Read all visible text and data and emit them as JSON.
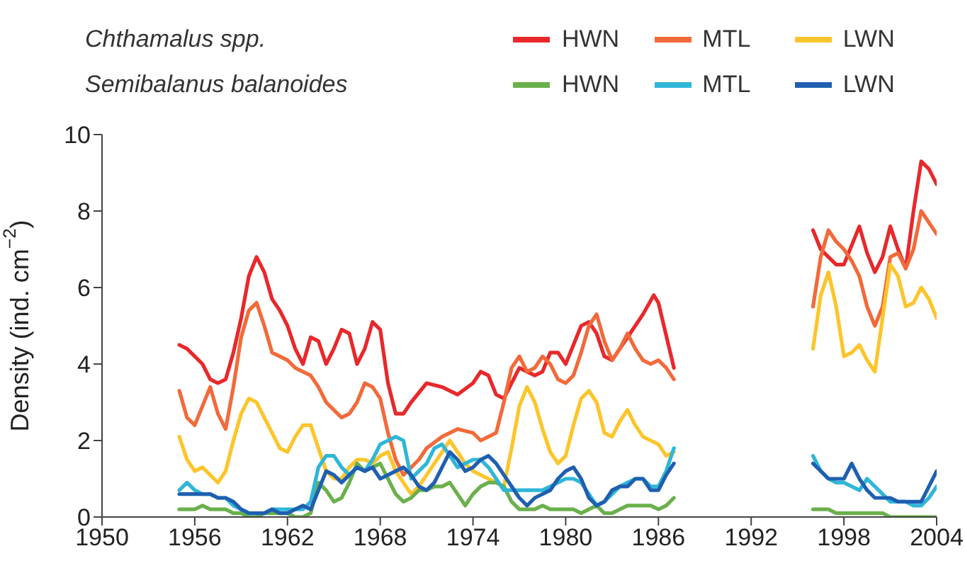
{
  "chart_data": {
    "type": "line",
    "ylabel": "Density (ind. cm$^{−2}$)",
    "xlim": [
      1950,
      2004
    ],
    "xticks": [
      1950,
      1956,
      1962,
      1968,
      1974,
      1980,
      1986,
      1992,
      1998,
      2004
    ],
    "ylim": [
      0,
      10
    ],
    "yticks": [
      0,
      2,
      4,
      6,
      8,
      10
    ],
    "grid": false,
    "legend": "top right",
    "annotations": [
      "Chthamalus spp.",
      "Semibalanus balanoides"
    ],
    "x": [
      1955,
      1955.5,
      1956,
      1956.5,
      1957,
      1957.5,
      1958,
      1958.5,
      1959,
      1959.5,
      1960,
      1960.5,
      1961,
      1961.5,
      1962,
      1962.5,
      1963,
      1963.5,
      1964,
      1964.5,
      1965,
      1965.5,
      1966,
      1966.5,
      1967,
      1967.5,
      1968,
      1968.5,
      1969,
      1969.5,
      1970,
      1970.5,
      1971,
      1971.5,
      1972,
      1972.5,
      1973,
      1973.5,
      1974,
      1974.5,
      1975,
      1975.5,
      1976,
      1976.5,
      1977,
      1977.5,
      1978,
      1978.5,
      1979,
      1979.5,
      1980,
      1980.5,
      1981,
      1981.5,
      1982,
      1982.5,
      1983,
      1983.5,
      1984,
      1984.5,
      1985,
      1985.5,
      1986,
      1986.5,
      1987,
      1991,
      1996,
      1996.5,
      1997,
      1997.5,
      1998,
      1998.5,
      1999,
      1999.5,
      2000,
      2000.5,
      2001,
      2001.5,
      2002,
      2002.5,
      2003,
      2003.5,
      2004
    ],
    "series": [
      {
        "name": "HWN",
        "color": "#e8282b",
        "x": [
          1955,
          1955.5,
          1956.5,
          1957,
          1957.5,
          1958,
          1958.5,
          1959,
          1959.5,
          1960,
          1960.5,
          1961,
          1961.5,
          1962,
          1962.5,
          1963,
          1963.5,
          1964,
          1964.5,
          1965,
          1965.5,
          1966,
          1966.5,
          1967,
          1967.5,
          1968,
          1968.5,
          1969,
          1969.5,
          1970,
          1971,
          1972,
          1973,
          1974,
          1974.5,
          1975,
          1975.5,
          1976,
          1977,
          1977.5,
          1978,
          1978.5,
          1979,
          1979.5,
          1980,
          1980.5,
          1981,
          1981.5,
          1982,
          1982.5,
          1983,
          1983.5,
          1984,
          1984.5,
          1985,
          1985.7,
          1986,
          1987,
          1991,
          1996,
          1996.5,
          1997,
          1997.5,
          1998,
          1999,
          1999.5,
          2000,
          2000.5,
          2001,
          2001.5,
          2002,
          2002.5,
          2003,
          2003.5,
          2004
        ],
        "values": [
          4.5,
          4.4,
          4.0,
          3.6,
          3.5,
          3.6,
          4.3,
          5.2,
          6.3,
          6.8,
          6.4,
          5.7,
          5.4,
          5.0,
          4.4,
          4.0,
          4.7,
          4.6,
          4.0,
          4.4,
          4.9,
          4.8,
          4.0,
          4.4,
          5.1,
          4.9,
          3.5,
          2.7,
          2.7,
          3.0,
          3.5,
          3.4,
          3.2,
          3.5,
          3.8,
          3.7,
          3.2,
          3.1,
          3.9,
          3.8,
          3.7,
          3.8,
          4.3,
          4.3,
          4.0,
          4.5,
          5.0,
          5.1,
          4.8,
          4.2,
          4.1,
          4.4,
          4.7,
          5.0,
          5.3,
          5.8,
          5.6,
          3.9,
          null,
          7.5,
          7.0,
          6.8,
          6.6,
          6.6,
          7.6,
          6.9,
          6.4,
          6.8,
          7.6,
          7.0,
          6.5,
          8.0,
          9.3,
          9.1,
          8.7
        ]
      },
      {
        "name": "MTL",
        "color": "#f26a3a",
        "x": [
          1955,
          1955.5,
          1956,
          1956.5,
          1957,
          1957.5,
          1958,
          1958.5,
          1959,
          1959.5,
          1960,
          1960.5,
          1961,
          1961.5,
          1962,
          1962.5,
          1963,
          1963.5,
          1964,
          1964.5,
          1965,
          1965.5,
          1966,
          1966.5,
          1967,
          1967.5,
          1968,
          1968.5,
          1969,
          1969.5,
          1970,
          1970.5,
          1971,
          1972,
          1973,
          1974,
          1974.5,
          1975,
          1975.5,
          1976,
          1976.5,
          1977,
          1977.5,
          1978,
          1978.5,
          1979,
          1979.5,
          1980,
          1980.5,
          1981,
          1981.5,
          1982,
          1982.5,
          1983,
          1983.5,
          1984,
          1984.5,
          1985,
          1985.5,
          1986,
          1986.5,
          1987,
          1991,
          1996,
          1996.5,
          1997,
          1997.5,
          1998,
          1998.5,
          1999,
          1999.5,
          2000,
          2000.5,
          2001,
          2001.5,
          2002,
          2002.5,
          2003,
          2003.5,
          2004
        ],
        "values": [
          3.3,
          2.6,
          2.4,
          2.9,
          3.4,
          2.7,
          2.3,
          3.4,
          4.7,
          5.4,
          5.6,
          5.0,
          4.3,
          4.2,
          4.1,
          3.9,
          3.8,
          3.7,
          3.4,
          3.0,
          2.8,
          2.6,
          2.7,
          3.0,
          3.5,
          3.4,
          3.1,
          2.2,
          1.5,
          1.1,
          1.3,
          1.5,
          1.8,
          2.1,
          2.3,
          2.2,
          2.0,
          2.1,
          2.2,
          3.0,
          3.9,
          4.2,
          3.8,
          3.9,
          4.2,
          4.0,
          3.6,
          3.5,
          3.7,
          4.3,
          5.0,
          5.3,
          4.6,
          4.1,
          4.4,
          4.8,
          4.4,
          4.1,
          4.0,
          4.1,
          3.9,
          3.6,
          null,
          5.5,
          6.8,
          7.5,
          7.2,
          7.0,
          6.7,
          6.3,
          5.5,
          5.0,
          5.5,
          6.8,
          6.9,
          6.5,
          7.0,
          8.0,
          7.7,
          7.4
        ]
      },
      {
        "name": "LWN",
        "color": "#fdc52b",
        "values": [
          2.1,
          1.5,
          1.2,
          1.3,
          1.1,
          0.9,
          1.2,
          2.0,
          2.7,
          3.1,
          3.0,
          2.6,
          2.2,
          1.8,
          1.7,
          2.1,
          2.4,
          2.4,
          1.8,
          1.2,
          1.0,
          1.0,
          1.3,
          1.5,
          1.5,
          1.4,
          1.6,
          1.7,
          1.2,
          0.9,
          0.6,
          0.8,
          1.1,
          1.4,
          1.7,
          2.0,
          1.7,
          1.4,
          1.2,
          1.1,
          1.0,
          0.9,
          0.8,
          1.8,
          2.9,
          3.4,
          3.0,
          2.3,
          1.7,
          1.4,
          1.6,
          2.4,
          3.1,
          3.3,
          3.0,
          2.2,
          2.1,
          2.5,
          2.8,
          2.4,
          2.1,
          2.0,
          1.9,
          1.6,
          1.7,
          null,
          4.4,
          5.8,
          6.4,
          5.5,
          4.2,
          4.3,
          4.5,
          4.1,
          3.8,
          5.2,
          6.6,
          6.3,
          5.5,
          5.6,
          6.0,
          5.7,
          5.2
        ]
      },
      {
        "name": "HWN",
        "color": "#6ab04c",
        "values": [
          0.2,
          0.2,
          0.2,
          0.3,
          0.2,
          0.2,
          0.2,
          0.1,
          0.1,
          0.0,
          0.0,
          0.1,
          0.1,
          0.1,
          0.1,
          0.0,
          0.0,
          0.1,
          0.9,
          0.7,
          0.4,
          0.5,
          0.9,
          1.4,
          1.2,
          1.3,
          1.4,
          1.0,
          0.6,
          0.4,
          0.5,
          0.7,
          0.7,
          0.8,
          0.8,
          0.9,
          0.6,
          0.3,
          0.6,
          0.8,
          0.9,
          0.9,
          0.8,
          0.4,
          0.2,
          0.2,
          0.2,
          0.3,
          0.2,
          0.2,
          0.2,
          0.2,
          0.1,
          0.2,
          0.3,
          0.1,
          0.1,
          0.2,
          0.3,
          0.3,
          0.3,
          0.3,
          0.2,
          0.3,
          0.5,
          null,
          0.2,
          0.2,
          0.2,
          0.1,
          0.1,
          0.1,
          0.1,
          0.1,
          0.1,
          0.1,
          0.0,
          0.0,
          0.0,
          0.0,
          0.0,
          0.0,
          0.0
        ]
      },
      {
        "name": "MTL",
        "color": "#2fb6d8",
        "values": [
          0.7,
          0.9,
          0.7,
          0.6,
          0.6,
          0.5,
          0.5,
          0.3,
          0.2,
          0.1,
          0.1,
          0.1,
          0.2,
          0.2,
          0.2,
          0.2,
          0.2,
          0.4,
          1.3,
          1.6,
          1.6,
          1.3,
          1.1,
          1.3,
          1.2,
          1.5,
          1.9,
          2.0,
          2.1,
          2.0,
          1.0,
          1.2,
          1.4,
          1.8,
          1.9,
          1.6,
          1.3,
          1.4,
          1.5,
          1.5,
          1.3,
          1.0,
          0.7,
          0.7,
          0.7,
          0.7,
          0.7,
          0.7,
          0.8,
          0.9,
          1.0,
          1.0,
          0.9,
          0.6,
          0.3,
          0.4,
          0.6,
          0.8,
          0.9,
          1.0,
          1.0,
          0.8,
          0.8,
          1.2,
          1.8,
          null,
          1.6,
          1.2,
          1.0,
          0.9,
          0.9,
          0.8,
          0.7,
          1.0,
          0.8,
          0.6,
          0.4,
          0.4,
          0.4,
          0.3,
          0.3,
          0.5,
          0.8
        ]
      },
      {
        "name": "LWN",
        "color": "#1f5fb0",
        "values": [
          0.6,
          0.6,
          0.6,
          0.6,
          0.6,
          0.5,
          0.5,
          0.4,
          0.2,
          0.1,
          0.1,
          0.1,
          0.2,
          0.1,
          0.1,
          0.2,
          0.3,
          0.2,
          0.7,
          1.2,
          1.1,
          0.9,
          1.1,
          1.3,
          1.2,
          1.3,
          1.0,
          1.1,
          1.2,
          1.3,
          1.1,
          0.8,
          0.7,
          0.9,
          1.3,
          1.7,
          1.5,
          1.2,
          1.3,
          1.5,
          1.6,
          1.4,
          1.1,
          0.8,
          0.5,
          0.3,
          0.5,
          0.6,
          0.7,
          1.0,
          1.2,
          1.3,
          1.0,
          0.5,
          0.3,
          0.4,
          0.7,
          0.8,
          0.8,
          1.0,
          1.0,
          0.7,
          0.7,
          1.1,
          1.4,
          null,
          1.4,
          1.2,
          1.0,
          1.0,
          1.0,
          1.4,
          1.0,
          0.7,
          0.5,
          0.5,
          0.5,
          0.4,
          0.4,
          0.4,
          0.4,
          0.8,
          1.2
        ]
      }
    ]
  }
}
